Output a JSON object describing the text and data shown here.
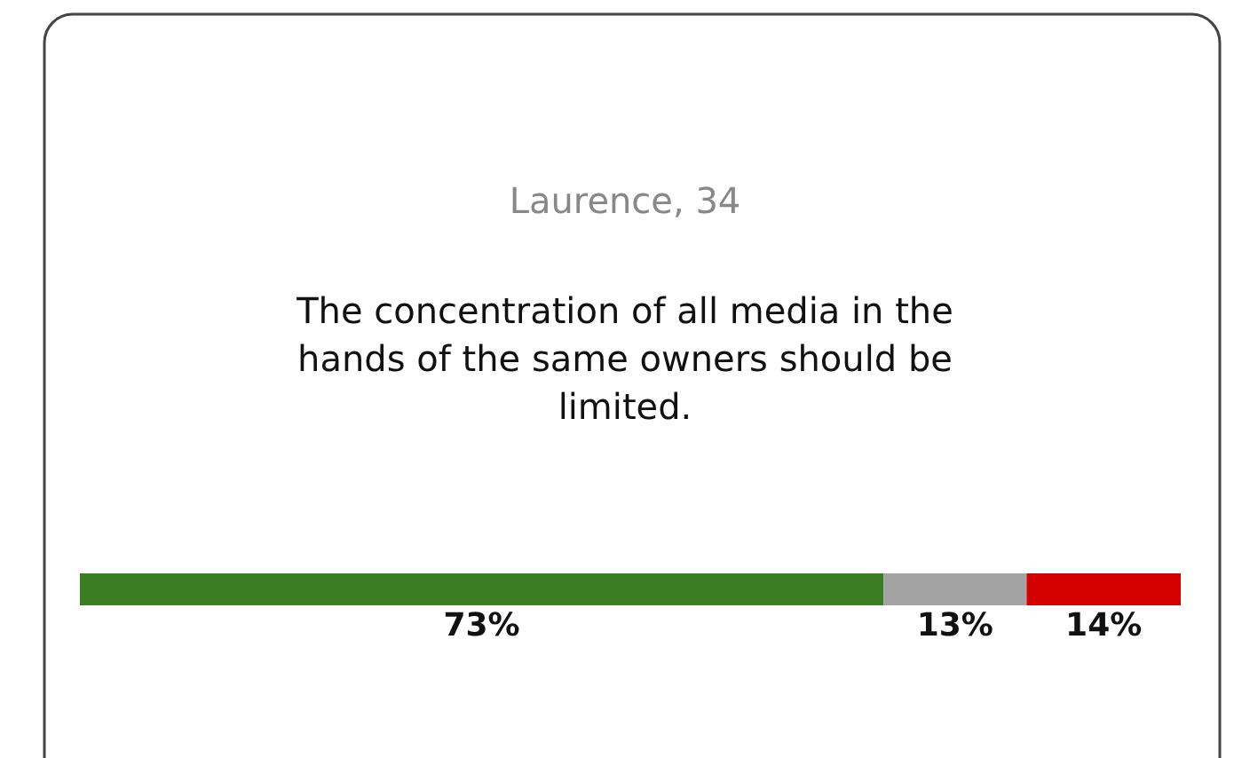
{
  "chart_data": {
    "type": "bar",
    "orientation": "horizontal",
    "stacked": true,
    "title": "Laurence, 34",
    "subtitle": "The concentration of all media in the hands of the same owners should be limited.",
    "categories": [
      null
    ],
    "series": [
      {
        "color": "#3a7d23",
        "values": [
          73
        ],
        "value_labels": [
          "73%"
        ]
      },
      {
        "color": "#a3a3a3",
        "values": [
          13
        ],
        "value_labels": [
          "13%"
        ]
      },
      {
        "color": "#d40000",
        "values": [
          14
        ],
        "value_labels": [
          "14%"
        ]
      }
    ]
  }
}
